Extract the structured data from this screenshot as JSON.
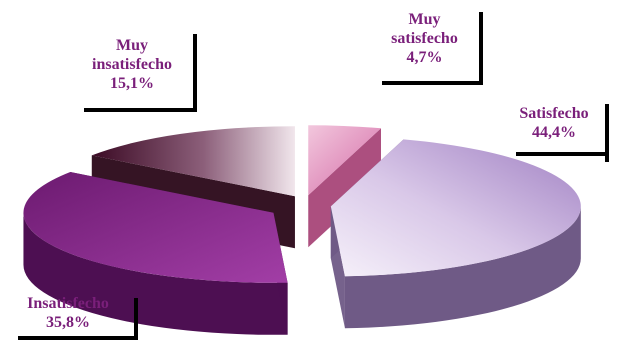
{
  "chart_data": {
    "type": "pie",
    "style": "3d-exploded",
    "slices": [
      {
        "label_lines": [
          "Muy",
          "satisfecho"
        ],
        "value_text": "4,7%",
        "value": 4.7,
        "color": "#d46aa6"
      },
      {
        "label_lines": [
          "Satisfecho"
        ],
        "value_text": "44,4%",
        "value": 44.4,
        "color": "#b89ad0"
      },
      {
        "label_lines": [
          "Insatisfecho"
        ],
        "value_text": "35,8%",
        "value": 35.8,
        "color": "#8a2a8c"
      },
      {
        "label_lines": [
          "Muy",
          "insatisfecho"
        ],
        "value_text": "15,1%",
        "value": 15.1,
        "color": "#5a1438"
      }
    ],
    "label_color": "#7a1f7a"
  }
}
